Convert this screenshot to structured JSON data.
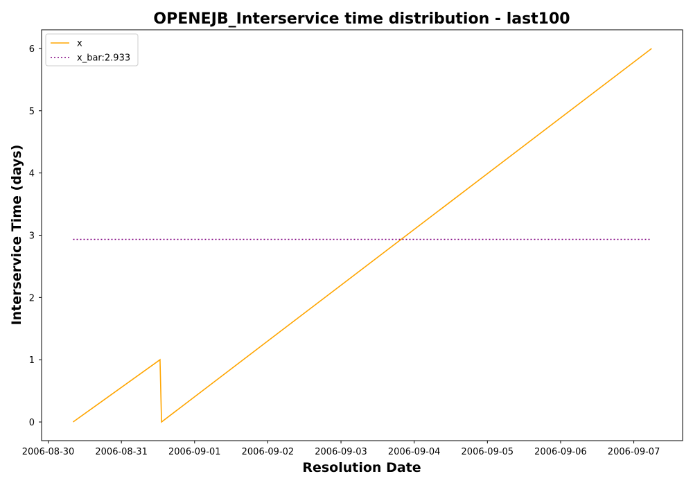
{
  "chart_data": {
    "type": "line",
    "title": "OPENEJB_Interservice time distribution - last100",
    "xlabel": "Resolution Date",
    "ylabel": "Interservice Time (days)",
    "x_ticks": [
      "2006-08-30",
      "2006-08-31",
      "2006-09-01",
      "2006-09-02",
      "2006-09-03",
      "2006-09-04",
      "2006-09-05",
      "2006-09-06",
      "2006-09-07"
    ],
    "y_ticks": [
      0,
      1,
      2,
      3,
      4,
      5,
      6
    ],
    "xlim": [
      "2006-08-29T21:50",
      "2006-09-07T16:00"
    ],
    "ylim": [
      -0.3,
      6.3
    ],
    "grid": false,
    "legend_position": "top-left",
    "series": [
      {
        "name": "x",
        "color": "#ffa500",
        "style": "solid",
        "points": [
          {
            "x": "2006-08-30T08:10",
            "y": 0
          },
          {
            "x": "2006-08-31T12:40",
            "y": 1
          },
          {
            "x": "2006-08-31T13:10",
            "y": 0
          },
          {
            "x": "2006-09-07T05:50",
            "y": 6
          }
        ]
      },
      {
        "name": "x_bar:2.933",
        "color": "#800080",
        "style": "dotted",
        "points": [
          {
            "x": "2006-08-30T08:10",
            "y": 2.933
          },
          {
            "x": "2006-09-07T05:50",
            "y": 2.933
          }
        ]
      }
    ]
  }
}
